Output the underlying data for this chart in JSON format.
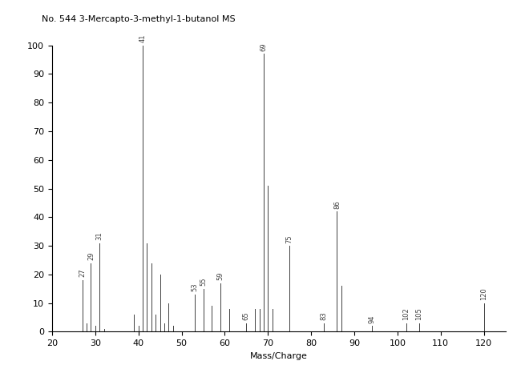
{
  "title": "No. 544 3-Mercapto-3-methyl-1-butanol MS",
  "xlabel": "Mass/Charge",
  "ylabel": "",
  "xlim": [
    20,
    125
  ],
  "ylim": [
    0,
    100
  ],
  "background_color": "#ffffff",
  "peaks": [
    {
      "mz": 27,
      "intensity": 18,
      "label": "27"
    },
    {
      "mz": 28,
      "intensity": 3,
      "label": ""
    },
    {
      "mz": 29,
      "intensity": 24,
      "label": "29"
    },
    {
      "mz": 30,
      "intensity": 2,
      "label": ""
    },
    {
      "mz": 31,
      "intensity": 31,
      "label": "31"
    },
    {
      "mz": 32,
      "intensity": 1,
      "label": ""
    },
    {
      "mz": 39,
      "intensity": 6,
      "label": ""
    },
    {
      "mz": 40,
      "intensity": 2,
      "label": ""
    },
    {
      "mz": 41,
      "intensity": 100,
      "label": "41"
    },
    {
      "mz": 42,
      "intensity": 31,
      "label": ""
    },
    {
      "mz": 43,
      "intensity": 24,
      "label": ""
    },
    {
      "mz": 44,
      "intensity": 6,
      "label": ""
    },
    {
      "mz": 45,
      "intensity": 20,
      "label": ""
    },
    {
      "mz": 46,
      "intensity": 3,
      "label": ""
    },
    {
      "mz": 47,
      "intensity": 10,
      "label": ""
    },
    {
      "mz": 48,
      "intensity": 2,
      "label": ""
    },
    {
      "mz": 53,
      "intensity": 13,
      "label": "53"
    },
    {
      "mz": 55,
      "intensity": 15,
      "label": "55"
    },
    {
      "mz": 57,
      "intensity": 9,
      "label": ""
    },
    {
      "mz": 59,
      "intensity": 17,
      "label": "59"
    },
    {
      "mz": 61,
      "intensity": 8,
      "label": ""
    },
    {
      "mz": 65,
      "intensity": 3,
      "label": "65"
    },
    {
      "mz": 67,
      "intensity": 8,
      "label": ""
    },
    {
      "mz": 68,
      "intensity": 8,
      "label": ""
    },
    {
      "mz": 69,
      "intensity": 97,
      "label": "69"
    },
    {
      "mz": 70,
      "intensity": 51,
      "label": ""
    },
    {
      "mz": 71,
      "intensity": 8,
      "label": ""
    },
    {
      "mz": 75,
      "intensity": 30,
      "label": "75"
    },
    {
      "mz": 83,
      "intensity": 3,
      "label": "83"
    },
    {
      "mz": 86,
      "intensity": 42,
      "label": "86"
    },
    {
      "mz": 87,
      "intensity": 16,
      "label": ""
    },
    {
      "mz": 94,
      "intensity": 2,
      "label": "94"
    },
    {
      "mz": 102,
      "intensity": 3,
      "label": "102"
    },
    {
      "mz": 105,
      "intensity": 3,
      "label": "105"
    },
    {
      "mz": 120,
      "intensity": 10,
      "label": "120"
    }
  ],
  "peak_color": "#404040",
  "label_fontsize": 6,
  "title_fontsize": 8,
  "axis_fontsize": 8,
  "xticks": [
    20,
    30,
    40,
    50,
    60,
    70,
    80,
    90,
    100,
    110,
    120
  ],
  "yticks": [
    0,
    10,
    20,
    30,
    40,
    50,
    60,
    70,
    80,
    90,
    100
  ]
}
